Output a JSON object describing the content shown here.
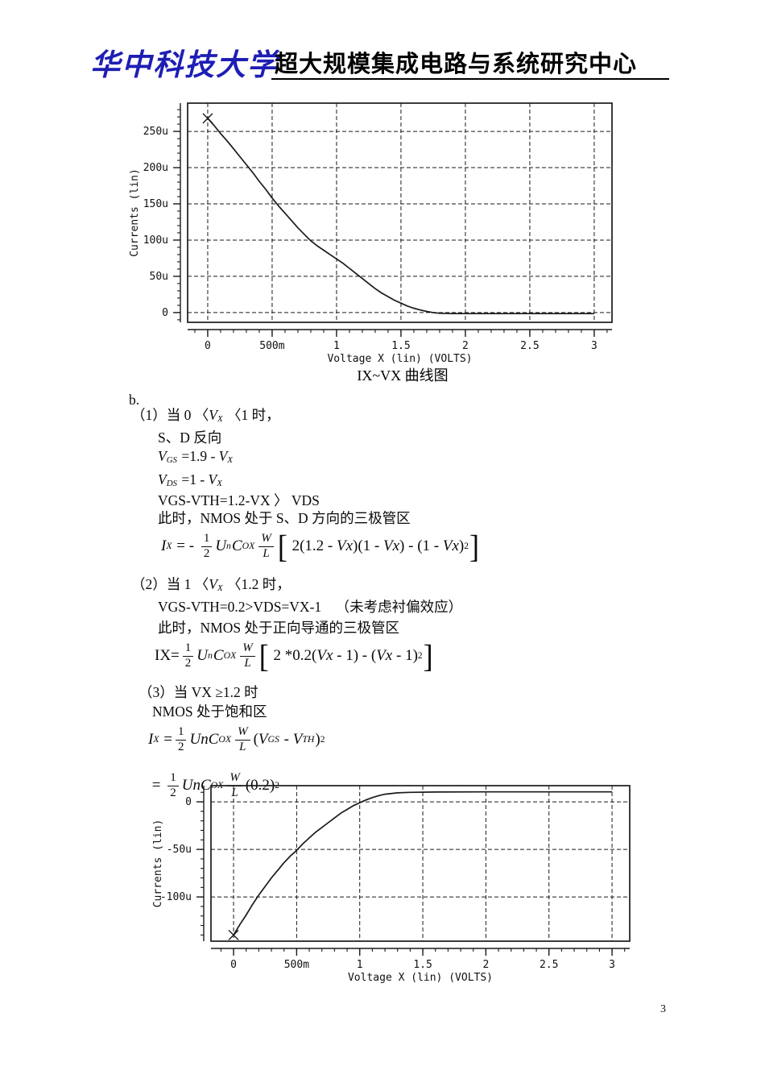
{
  "header": {
    "logo_text": "华中科技大学",
    "title": "超大规模集成电路与系统研究中心"
  },
  "footer": {
    "page_number": "3"
  },
  "body": {
    "lines": [
      {
        "tokens": [
          {
            "k": "t",
            "v": "b."
          }
        ]
      },
      {
        "tokens": [
          {
            "k": "t",
            "v": "（1）当 0 〈"
          },
          {
            "k": "i",
            "v": "V"
          },
          {
            "k": "sub",
            "v": "X"
          },
          {
            "k": "t",
            "v": " 〈1 时，"
          }
        ]
      },
      {
        "tokens": [
          {
            "k": "t",
            "v": "S、D 反向"
          }
        ]
      },
      {
        "tokens": [
          {
            "k": "i",
            "v": "V"
          },
          {
            "k": "sub",
            "v": "GS"
          },
          {
            "k": "t",
            "v": " =1.9 - "
          },
          {
            "k": "i",
            "v": "V"
          },
          {
            "k": "sub",
            "v": "X"
          }
        ]
      },
      {
        "tokens": [
          {
            "k": "i",
            "v": "V"
          },
          {
            "k": "sub",
            "v": "DS"
          },
          {
            "k": "t",
            "v": " =1 - "
          },
          {
            "k": "i",
            "v": "V"
          },
          {
            "k": "sub",
            "v": "X"
          }
        ]
      },
      {
        "tokens": [
          {
            "k": "t",
            "v": "VGS-VTH=1.2-VX 〉 VDS"
          }
        ]
      },
      {
        "tokens": [
          {
            "k": "t",
            "v": "此时，NMOS 处于 S、D 方向的三极管区"
          }
        ]
      },
      {
        "eq": true,
        "tokens": [
          {
            "k": "i",
            "v": "I"
          },
          {
            "k": "sub",
            "v": "X"
          },
          {
            "k": "t",
            "v": " = - "
          },
          {
            "k": "frac",
            "n": "1",
            "d": "2"
          },
          {
            "k": "i",
            "v": "U"
          },
          {
            "k": "sub",
            "v": "n"
          },
          {
            "k": "i",
            "v": "C"
          },
          {
            "k": "sub",
            "v": "OX"
          },
          {
            "k": "frac",
            "n": "W",
            "d": "L",
            "it": true
          },
          {
            "k": "br",
            "v": "["
          },
          {
            "k": "t",
            "v": " 2(1.2 - "
          },
          {
            "k": "i",
            "v": "Vx"
          },
          {
            "k": "t",
            "v": ")(1 - "
          },
          {
            "k": "i",
            "v": "Vx"
          },
          {
            "k": "t",
            "v": ") - (1 - "
          },
          {
            "k": "i",
            "v": "Vx"
          },
          {
            "k": "t",
            "v": ")"
          },
          {
            "k": "sup",
            "v": "2"
          },
          {
            "k": "br",
            "v": "]"
          }
        ]
      },
      {
        "tokens": [
          {
            "k": "t",
            "v": "（2）当 1 〈"
          },
          {
            "k": "i",
            "v": "V"
          },
          {
            "k": "sub",
            "v": "X"
          },
          {
            "k": "t",
            "v": " 〈1.2 时，"
          }
        ]
      },
      {
        "tokens": [
          {
            "k": "t",
            "v": "VGS-VTH=0.2>VDS=VX-1    （未考虑衬偏效应）"
          }
        ]
      },
      {
        "tokens": [
          {
            "k": "t",
            "v": "此时，NMOS 处于正向导通的三极管区"
          }
        ]
      },
      {
        "eq": true,
        "tokens": [
          {
            "k": "t",
            "v": "IX="
          },
          {
            "k": "frac",
            "n": "1",
            "d": "2"
          },
          {
            "k": "i",
            "v": "U"
          },
          {
            "k": "sub",
            "v": "n"
          },
          {
            "k": "i",
            "v": "C"
          },
          {
            "k": "sub",
            "v": "OX"
          },
          {
            "k": "frac",
            "n": "W",
            "d": "L",
            "it": true
          },
          {
            "k": "br",
            "v": "["
          },
          {
            "k": "t",
            "v": " 2 *0.2("
          },
          {
            "k": "i",
            "v": "Vx"
          },
          {
            "k": "t",
            "v": " - 1) - ("
          },
          {
            "k": "i",
            "v": "Vx"
          },
          {
            "k": "t",
            "v": " - 1)"
          },
          {
            "k": "sup",
            "v": "2"
          },
          {
            "k": "br",
            "v": "]"
          }
        ]
      },
      {
        "tokens": [
          {
            "k": "t",
            "v": "（3）当 VX ≥1.2 时"
          }
        ]
      },
      {
        "tokens": [
          {
            "k": "t",
            "v": "NMOS 处于饱和区"
          }
        ]
      },
      {
        "eq": true,
        "tokens": [
          {
            "k": "i",
            "v": "I"
          },
          {
            "k": "sub",
            "v": "X"
          },
          {
            "k": "t",
            "v": " ="
          },
          {
            "k": "frac",
            "n": "1",
            "d": "2"
          },
          {
            "k": "i",
            "v": "Un"
          },
          {
            "k": "i",
            "v": "C"
          },
          {
            "k": "sub",
            "v": "OX"
          },
          {
            "k": "frac",
            "n": "W",
            "d": "L",
            "it": true
          },
          {
            "k": "t",
            "v": "("
          },
          {
            "k": "i",
            "v": "V"
          },
          {
            "k": "sub",
            "v": "GS"
          },
          {
            "k": "t",
            "v": " - "
          },
          {
            "k": "i",
            "v": "V"
          },
          {
            "k": "sub",
            "v": "TH"
          },
          {
            "k": "t",
            "v": ")"
          },
          {
            "k": "sup",
            "v": "2"
          }
        ]
      },
      {
        "eq": true,
        "tokens": [
          {
            "k": "t",
            "v": " = "
          },
          {
            "k": "frac",
            "n": "1",
            "d": "2"
          },
          {
            "k": "i",
            "v": "Un"
          },
          {
            "k": "i",
            "v": "C"
          },
          {
            "k": "sub",
            "v": "OX"
          },
          {
            "k": "frac",
            "n": "W",
            "d": "L",
            "it": true
          },
          {
            "k": "t",
            "v": "(0.2)"
          },
          {
            "k": "sup",
            "v": "2"
          }
        ]
      }
    ]
  },
  "chart_data": [
    {
      "type": "line",
      "title": "IX~VX 曲线图",
      "xlabel": "Voltage X (lin) (VOLTS)",
      "ylabel": "Currents (lin)",
      "grid": true,
      "legend": "none",
      "marker_first_point": "x",
      "xlim": [
        -0.156,
        3.138
      ],
      "ylim": [
        -13.5,
        289
      ],
      "x_ticks": [
        {
          "v": 0,
          "label": "0"
        },
        {
          "v": 0.5,
          "label": "500m"
        },
        {
          "v": 1,
          "label": "1"
        },
        {
          "v": 1.5,
          "label": "1.5"
        },
        {
          "v": 2,
          "label": "2"
        },
        {
          "v": 2.5,
          "label": "2.5"
        },
        {
          "v": 3,
          "label": "3"
        }
      ],
      "y_ticks": [
        {
          "v": 0,
          "label": "0"
        },
        {
          "v": 50,
          "label": "50u"
        },
        {
          "v": 100,
          "label": "100u"
        },
        {
          "v": 150,
          "label": "150u"
        },
        {
          "v": 200,
          "label": "200u"
        },
        {
          "v": 250,
          "label": "250u"
        }
      ],
      "x_minor_step": 0.1,
      "y_minor_step": 10,
      "points": [
        [
          0,
          268
        ],
        [
          0.05,
          258
        ],
        [
          0.1,
          247
        ],
        [
          0.15,
          237
        ],
        [
          0.2,
          226
        ],
        [
          0.25,
          215
        ],
        [
          0.3,
          204
        ],
        [
          0.35,
          193
        ],
        [
          0.4,
          181
        ],
        [
          0.45,
          170
        ],
        [
          0.5,
          158
        ],
        [
          0.55,
          147
        ],
        [
          0.6,
          137
        ],
        [
          0.65,
          127
        ],
        [
          0.7,
          117
        ],
        [
          0.75,
          108
        ],
        [
          0.8,
          99
        ],
        [
          0.85,
          92
        ],
        [
          0.9,
          86
        ],
        [
          0.95,
          80
        ],
        [
          1.0,
          74
        ],
        [
          1.05,
          68
        ],
        [
          1.1,
          61
        ],
        [
          1.15,
          54
        ],
        [
          1.2,
          47
        ],
        [
          1.25,
          40
        ],
        [
          1.3,
          33
        ],
        [
          1.35,
          27
        ],
        [
          1.4,
          22
        ],
        [
          1.45,
          17
        ],
        [
          1.5,
          13
        ],
        [
          1.55,
          9
        ],
        [
          1.6,
          6
        ],
        [
          1.65,
          3.5
        ],
        [
          1.7,
          1.5
        ],
        [
          1.75,
          0
        ],
        [
          1.8,
          -1
        ],
        [
          1.9,
          -1.5
        ],
        [
          2.2,
          -1.5
        ],
        [
          3.0,
          -1.5
        ]
      ]
    },
    {
      "type": "line",
      "title": "",
      "xlabel": "Voltage X (lin) (VOLTS)",
      "ylabel": "Currents (lin)",
      "grid": true,
      "legend": "none",
      "marker_first_point": "x",
      "xlim": [
        -0.179,
        3.14
      ],
      "ylim": [
        -146.5,
        17
      ],
      "x_ticks": [
        {
          "v": 0,
          "label": "0"
        },
        {
          "v": 0.5,
          "label": "500m"
        },
        {
          "v": 1,
          "label": "1"
        },
        {
          "v": 1.5,
          "label": "1.5"
        },
        {
          "v": 2,
          "label": "2"
        },
        {
          "v": 2.5,
          "label": "2.5"
        },
        {
          "v": 3,
          "label": "3"
        }
      ],
      "y_ticks": [
        {
          "v": 0,
          "label": "0"
        },
        {
          "v": -50,
          "label": "-50u"
        },
        {
          "v": -100,
          "label": "-100u"
        }
      ],
      "x_minor_step": 0.1,
      "y_minor_step": 10,
      "points": [
        [
          0,
          -140
        ],
        [
          0.05,
          -129
        ],
        [
          0.1,
          -119
        ],
        [
          0.15,
          -108
        ],
        [
          0.2,
          -98
        ],
        [
          0.25,
          -89
        ],
        [
          0.3,
          -80
        ],
        [
          0.35,
          -72
        ],
        [
          0.4,
          -64
        ],
        [
          0.45,
          -57
        ],
        [
          0.5,
          -51
        ],
        [
          0.55,
          -44
        ],
        [
          0.6,
          -38
        ],
        [
          0.65,
          -32
        ],
        [
          0.7,
          -27
        ],
        [
          0.75,
          -22
        ],
        [
          0.8,
          -17
        ],
        [
          0.85,
          -12
        ],
        [
          0.9,
          -8
        ],
        [
          0.95,
          -4
        ],
        [
          1.0,
          -1
        ],
        [
          1.05,
          2
        ],
        [
          1.1,
          4.5
        ],
        [
          1.15,
          6.5
        ],
        [
          1.2,
          8
        ],
        [
          1.3,
          9.5
        ],
        [
          1.4,
          10
        ],
        [
          1.6,
          10.3
        ],
        [
          2.0,
          10.5
        ],
        [
          3.0,
          10.5
        ]
      ]
    }
  ],
  "colors": {
    "ink": "#1a1a1a",
    "logo_blue": "#1e1eb4",
    "background": "#ffffff"
  }
}
